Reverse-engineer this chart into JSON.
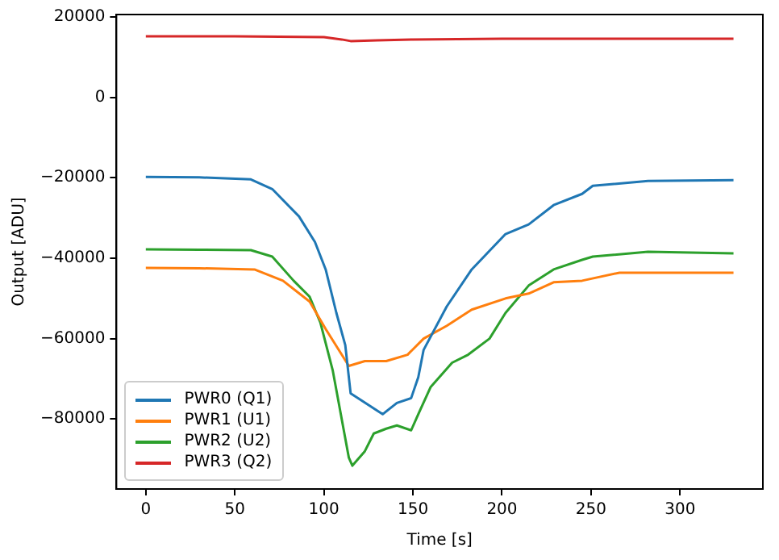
{
  "chart_data": {
    "type": "line",
    "xlabel": "Time [s]",
    "ylabel": "Output [ADU]",
    "xlim": [
      -16.5,
      346.5
    ],
    "xticks": [
      0,
      50,
      100,
      150,
      200,
      250,
      300
    ],
    "ylim": [
      -97400,
      20600
    ],
    "yticks": [
      {
        "value": -80000,
        "label": "−80000"
      },
      {
        "value": -60000,
        "label": "−60000"
      },
      {
        "value": -40000,
        "label": "−40000"
      },
      {
        "value": -20000,
        "label": "−20000"
      },
      0,
      20000
    ],
    "grid": false,
    "legend": "bottom left",
    "marker": "none",
    "line_style": "solid",
    "series": [
      {
        "name": "PWR0 (Q1)",
        "color": "#1f77b4",
        "x": [
          0,
          30,
          59,
          71,
          86,
          95,
          101,
          107,
          112,
          115,
          126,
          133,
          141,
          149,
          153,
          156,
          169,
          183,
          202,
          215,
          229,
          245,
          251,
          282,
          330
        ],
        "values": [
          -19800,
          -19900,
          -20400,
          -22800,
          -29600,
          -36000,
          -42800,
          -53600,
          -61600,
          -73600,
          -76800,
          -78800,
          -76000,
          -74800,
          -69600,
          -62800,
          -52000,
          -42800,
          -34000,
          -31600,
          -26800,
          -24000,
          -22000,
          -20800,
          -20600
        ]
      },
      {
        "name": "PWR1 (U1)",
        "color": "#ff7f0e",
        "x": [
          0,
          30,
          61,
          77,
          92,
          101,
          114,
          123,
          135,
          147,
          156,
          169,
          183,
          202,
          215,
          229,
          245,
          266,
          330
        ],
        "values": [
          -42400,
          -42500,
          -42800,
          -45600,
          -50800,
          -57600,
          -66800,
          -65600,
          -65600,
          -64000,
          -60000,
          -56800,
          -52800,
          -50000,
          -48800,
          -46000,
          -45600,
          -43600,
          -43600
        ]
      },
      {
        "name": "PWR2 (U2)",
        "color": "#2ca02c",
        "x": [
          0,
          30,
          59,
          71,
          83,
          92,
          98,
          105,
          109,
          114,
          116,
          123,
          128,
          135,
          141,
          149,
          153,
          160,
          172,
          181,
          193,
          202,
          215,
          229,
          245,
          251,
          282,
          330
        ],
        "values": [
          -37800,
          -37900,
          -38000,
          -39600,
          -45600,
          -49600,
          -56000,
          -68000,
          -77600,
          -89600,
          -91600,
          -88000,
          -83600,
          -82400,
          -81600,
          -82800,
          -78800,
          -72000,
          -66000,
          -64000,
          -60000,
          -53600,
          -46800,
          -42800,
          -40400,
          -39600,
          -38400,
          -38800
        ]
      },
      {
        "name": "PWR3 (Q2)",
        "color": "#d62728",
        "x": [
          0,
          50,
          100,
          110,
          115,
          130,
          150,
          200,
          250,
          330
        ],
        "values": [
          15200,
          15200,
          15000,
          14400,
          14000,
          14200,
          14400,
          14600,
          14600,
          14600
        ]
      }
    ]
  }
}
